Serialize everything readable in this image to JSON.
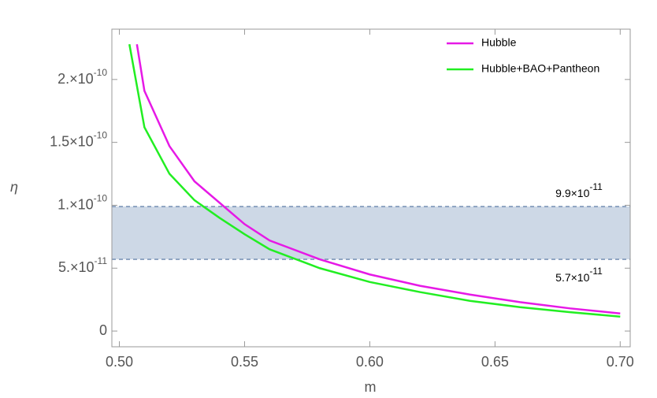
{
  "chart_data": {
    "type": "line",
    "xlabel": "m",
    "ylabel": "η",
    "xlim": [
      0.497,
      0.704
    ],
    "ylim": [
      -1.25e-11,
      2.4e-10
    ],
    "xticks": [
      {
        "value": 0.5,
        "label": "0.50"
      },
      0.55,
      {
        "value": 0.6,
        "label": "0.60"
      },
      0.65,
      {
        "value": 0.7,
        "label": "0.70"
      }
    ],
    "yticks": [
      0,
      {
        "value": 5e-11,
        "label": "5.×10",
        "exponent": "-11"
      },
      {
        "value": 1e-10,
        "label": "1.×10",
        "exponent": "-10"
      },
      {
        "value": 1.5e-10,
        "label": "1.5×10",
        "exponent": "-10"
      },
      {
        "value": 2e-10,
        "label": "2.×10",
        "exponent": "-10"
      }
    ],
    "band": [
      {
        "value": 9.9e-11,
        "label": "9.9×10",
        "exponent": "-11"
      },
      {
        "value": 5.7e-11,
        "label": "5.7×10",
        "exponent": "-11"
      }
    ],
    "band_color": "#cdd8e6",
    "legend": "top-right",
    "series": [
      {
        "name": "Hubble",
        "color": "#e619e6",
        "x": [
          0.507,
          0.51,
          0.52,
          0.53,
          0.54,
          0.55,
          0.56,
          0.58,
          0.6,
          0.62,
          0.64,
          0.66,
          0.68,
          0.7
        ],
        "values": [
          2.28e-10,
          1.91e-10,
          1.47e-10,
          1.19e-10,
          1.02e-10,
          8.5e-11,
          7.2e-11,
          5.7e-11,
          4.5e-11,
          3.6e-11,
          2.9e-11,
          2.3e-11,
          1.8e-11,
          1.4e-11
        ]
      },
      {
        "name": "Hubble+BAO+Pantheon",
        "color": "#22ee22",
        "x": [
          0.504,
          0.51,
          0.52,
          0.53,
          0.54,
          0.55,
          0.56,
          0.58,
          0.6,
          0.62,
          0.64,
          0.66,
          0.68,
          0.7
        ],
        "values": [
          2.28e-10,
          1.62e-10,
          1.25e-10,
          1.04e-10,
          9e-11,
          7.7e-11,
          6.5e-11,
          5e-11,
          3.9e-11,
          3.1e-11,
          2.4e-11,
          1.9e-11,
          1.5e-11,
          1.15e-11
        ]
      }
    ]
  }
}
